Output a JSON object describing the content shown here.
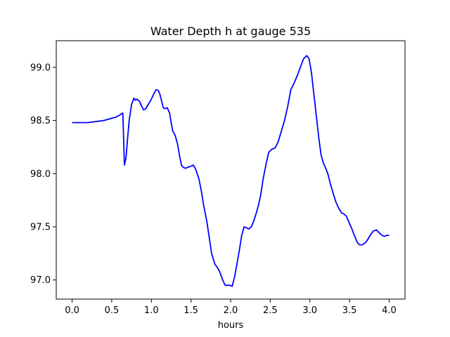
{
  "chart_data": {
    "type": "line",
    "title": "Water Depth h at gauge 535",
    "xlabel": "hours",
    "ylabel": "",
    "xlim": [
      -0.2,
      4.2
    ],
    "ylim": [
      96.82,
      99.25
    ],
    "xticks": [
      0.0,
      0.5,
      1.0,
      1.5,
      2.0,
      2.5,
      3.0,
      3.5,
      4.0
    ],
    "xtick_labels": [
      "0.0",
      "0.5",
      "1.0",
      "1.5",
      "2.0",
      "2.5",
      "3.0",
      "3.5",
      "4.0"
    ],
    "yticks": [
      97.0,
      97.5,
      98.0,
      98.5,
      99.0
    ],
    "ytick_labels": [
      "97.0",
      "97.5",
      "98.0",
      "98.5",
      "99.0"
    ],
    "grid": false,
    "legend": "none",
    "series": [
      {
        "color": "#0000ff",
        "x": [
          0.0,
          0.1,
          0.2,
          0.3,
          0.4,
          0.5,
          0.55,
          0.6,
          0.64,
          0.65,
          0.66,
          0.68,
          0.7,
          0.72,
          0.75,
          0.78,
          0.8,
          0.82,
          0.85,
          0.88,
          0.9,
          0.93,
          0.96,
          1.0,
          1.03,
          1.06,
          1.09,
          1.11,
          1.13,
          1.15,
          1.17,
          1.2,
          1.23,
          1.25,
          1.27,
          1.3,
          1.33,
          1.36,
          1.38,
          1.4,
          1.43,
          1.46,
          1.5,
          1.53,
          1.56,
          1.6,
          1.63,
          1.66,
          1.7,
          1.73,
          1.76,
          1.8,
          1.83,
          1.86,
          1.9,
          1.93,
          1.96,
          1.99,
          2.02,
          2.05,
          2.08,
          2.11,
          2.14,
          2.17,
          2.2,
          2.23,
          2.26,
          2.29,
          2.32,
          2.35,
          2.38,
          2.41,
          2.45,
          2.48,
          2.52,
          2.56,
          2.6,
          2.64,
          2.68,
          2.72,
          2.76,
          2.8,
          2.84,
          2.88,
          2.92,
          2.96,
          2.99,
          3.02,
          3.05,
          3.08,
          3.11,
          3.14,
          3.17,
          3.2,
          3.23,
          3.26,
          3.3,
          3.33,
          3.36,
          3.4,
          3.43,
          3.46,
          3.5,
          3.53,
          3.56,
          3.6,
          3.63,
          3.66,
          3.7,
          3.73,
          3.76,
          3.8,
          3.84,
          3.88,
          3.91,
          3.94,
          3.97,
          4.0
        ],
        "y": [
          98.48,
          98.48,
          98.48,
          98.49,
          98.5,
          98.52,
          98.53,
          98.55,
          98.57,
          98.33,
          98.08,
          98.15,
          98.33,
          98.5,
          98.65,
          98.71,
          98.69,
          98.7,
          98.68,
          98.63,
          98.6,
          98.61,
          98.65,
          98.7,
          98.75,
          98.79,
          98.78,
          98.74,
          98.68,
          98.62,
          98.61,
          98.62,
          98.57,
          98.48,
          98.4,
          98.36,
          98.28,
          98.15,
          98.08,
          98.06,
          98.05,
          98.06,
          98.07,
          98.08,
          98.04,
          97.95,
          97.84,
          97.7,
          97.55,
          97.4,
          97.25,
          97.15,
          97.12,
          97.08,
          97.0,
          96.95,
          96.95,
          96.95,
          96.94,
          97.03,
          97.15,
          97.28,
          97.42,
          97.5,
          97.49,
          97.48,
          97.5,
          97.55,
          97.62,
          97.7,
          97.8,
          97.95,
          98.1,
          98.2,
          98.23,
          98.24,
          98.3,
          98.4,
          98.5,
          98.63,
          98.79,
          98.85,
          98.92,
          99.0,
          99.08,
          99.11,
          99.08,
          98.95,
          98.75,
          98.55,
          98.35,
          98.18,
          98.1,
          98.05,
          97.99,
          97.9,
          97.8,
          97.73,
          97.68,
          97.63,
          97.62,
          97.6,
          97.53,
          97.48,
          97.42,
          97.35,
          97.33,
          97.33,
          97.35,
          97.38,
          97.42,
          97.46,
          97.47,
          97.44,
          97.42,
          97.41,
          97.42,
          97.42
        ]
      }
    ]
  }
}
